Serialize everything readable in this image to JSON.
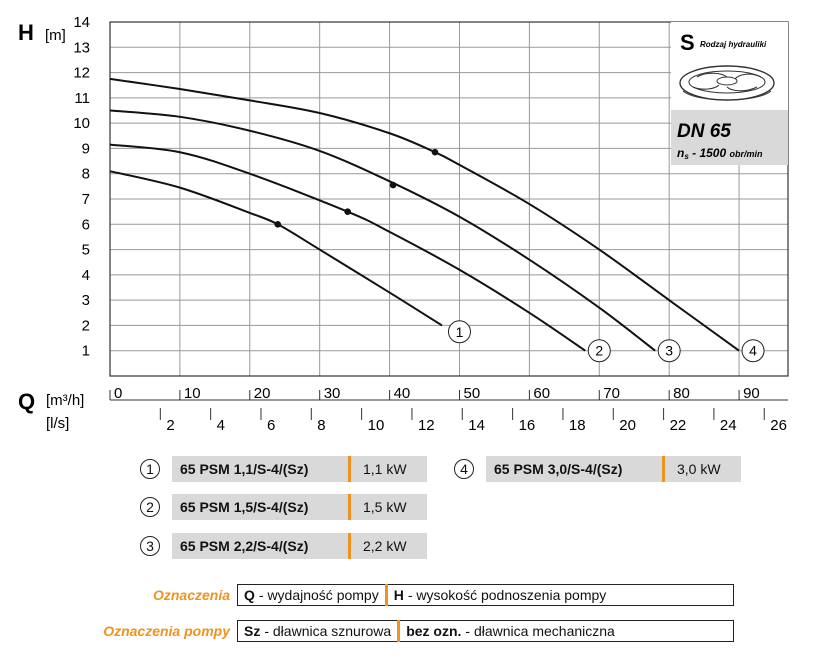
{
  "chart_data": {
    "type": "line",
    "y_axis": {
      "symbol": "H",
      "unit": "[m]",
      "range": [
        0,
        14
      ],
      "ticks": [
        1,
        2,
        3,
        4,
        5,
        6,
        7,
        8,
        9,
        10,
        11,
        12,
        13,
        14
      ]
    },
    "x_axis": {
      "symbol": "Q",
      "unit_primary": "[m³/h]",
      "unit_secondary": "[l/s]",
      "range": [
        0,
        97
      ],
      "ticks_m3h": [
        0,
        10,
        20,
        30,
        40,
        50,
        60,
        70,
        80,
        90
      ],
      "ticks_ls": [
        2,
        4,
        6,
        8,
        10,
        12,
        14,
        16,
        18,
        20,
        22,
        24,
        26
      ]
    },
    "grid": true,
    "series": [
      {
        "name": "1",
        "x": [
          0,
          10,
          20,
          24,
          30,
          40,
          47.5
        ],
        "y": [
          8.1,
          7.45,
          6.45,
          6.0,
          5.0,
          3.3,
          2.0
        ],
        "bep": [
          24,
          6.0
        ],
        "label_at": [
          50,
          1.75
        ]
      },
      {
        "name": "2",
        "x": [
          0,
          10,
          20,
          34,
          40,
          50,
          60,
          68
        ],
        "y": [
          9.15,
          8.85,
          8.0,
          6.5,
          5.7,
          4.2,
          2.5,
          1.0
        ],
        "bep": [
          34,
          6.5
        ],
        "label_at": [
          70,
          1.0
        ]
      },
      {
        "name": "3",
        "x": [
          0,
          10,
          20,
          30,
          40,
          50,
          60,
          70,
          78
        ],
        "y": [
          10.5,
          10.25,
          9.7,
          8.9,
          7.7,
          6.3,
          4.6,
          2.7,
          1.0
        ],
        "bep": [
          40.5,
          7.55
        ],
        "label_at": [
          80,
          1.0
        ]
      },
      {
        "name": "4",
        "x": [
          0,
          10,
          20,
          30,
          40,
          46.5,
          50,
          60,
          70,
          80,
          90
        ],
        "y": [
          11.75,
          11.35,
          10.9,
          10.4,
          9.6,
          8.85,
          8.35,
          6.8,
          5.0,
          3.0,
          1.0
        ],
        "bep": [
          46.5,
          8.85
        ],
        "label_at": [
          92,
          1.0
        ]
      }
    ]
  },
  "info_box": {
    "logo_letter": "S",
    "logo_caption": "Rodzaj hydrauliki",
    "dn": "DN 65",
    "ns_symbol": "n",
    "ns_sub": "s",
    "ns_value": " - 1500 ",
    "ns_unit": "obr/min"
  },
  "models": [
    {
      "num": "1",
      "name": "65 PSM 1,1/S-4/(Sz)",
      "power": "1,1 kW"
    },
    {
      "num": "2",
      "name": "65 PSM 1,5/S-4/(Sz)",
      "power": "1,5 kW"
    },
    {
      "num": "3",
      "name": "65 PSM 2,2/S-4/(Sz)",
      "power": "2,2 kW"
    },
    {
      "num": "4",
      "name": "65 PSM 3,0/S-4/(Sz)",
      "power": "3,0 kW"
    }
  ],
  "legend": {
    "row1_title": "Oznaczenia",
    "row1_a_key": "Q",
    "row1_a_text": "- wydajność pompy",
    "row1_b_key": "H",
    "row1_b_text": "- wysokość podnoszenia pompy",
    "row2_title": "Oznaczenia pompy",
    "row2_a_key": "Sz",
    "row2_a_text": "- dławnica sznurowa",
    "row2_b_key": "bez ozn.",
    "row2_b_text": "- dławnica mechaniczna"
  }
}
